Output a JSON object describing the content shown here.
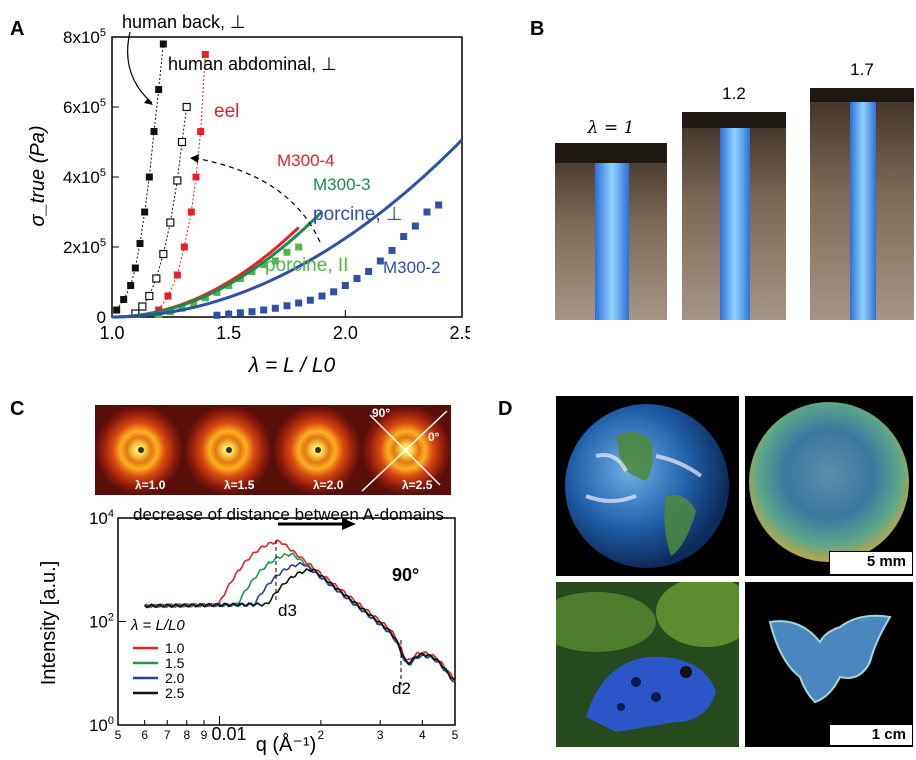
{
  "panels": {
    "a": "A",
    "b": "B",
    "c": "C",
    "d": "D"
  },
  "chart_data": [
    {
      "type": "scatter",
      "panel": "A",
      "ylabel": "σ_true (Pa)",
      "xlabel": "λ = L / L0",
      "xlim": [
        1.0,
        2.5
      ],
      "ylim": [
        0,
        800000
      ],
      "xticks": [
        "1.0",
        "1.5",
        "2.0",
        "2.5"
      ],
      "yticks": [
        "0",
        "2x10^5",
        "4x10^5",
        "6x10^5",
        "8x10^5"
      ],
      "series": [
        {
          "name": "human back, ⊥",
          "color": "#111111",
          "marker": "filled-square",
          "line": "dotted",
          "x": [
            1.02,
            1.05,
            1.08,
            1.1,
            1.12,
            1.14,
            1.16,
            1.18,
            1.2,
            1.22
          ],
          "y": [
            20000,
            50000,
            90000,
            140000,
            210000,
            300000,
            400000,
            530000,
            650000,
            780000
          ]
        },
        {
          "name": "human abdominal, ⊥",
          "color": "#111111",
          "marker": "open-square",
          "line": "dotted",
          "x": [
            1.1,
            1.13,
            1.16,
            1.19,
            1.22,
            1.25,
            1.28,
            1.3,
            1.32
          ],
          "y": [
            10000,
            30000,
            60000,
            110000,
            180000,
            270000,
            390000,
            500000,
            600000
          ]
        },
        {
          "name": "eel",
          "color": "#e8202a",
          "marker": "filled-square",
          "line": "dotted",
          "x": [
            1.2,
            1.24,
            1.28,
            1.31,
            1.34,
            1.36,
            1.38,
            1.4
          ],
          "y": [
            20000,
            60000,
            120000,
            200000,
            300000,
            400000,
            530000,
            750000
          ]
        },
        {
          "name": "porcine, II",
          "color": "#4fb848",
          "marker": "filled-square",
          "line": "none",
          "x": [
            1.2,
            1.25,
            1.3,
            1.35,
            1.4,
            1.45,
            1.5,
            1.55,
            1.6,
            1.65,
            1.7,
            1.75,
            1.8
          ],
          "y": [
            8000,
            15000,
            25000,
            40000,
            55000,
            70000,
            90000,
            110000,
            130000,
            150000,
            160000,
            185000,
            200000
          ]
        },
        {
          "name": "porcine, ⊥",
          "color": "#2f4fa8",
          "marker": "filled-square",
          "line": "none",
          "x": [
            1.45,
            1.5,
            1.55,
            1.6,
            1.65,
            1.7,
            1.75,
            1.8,
            1.85,
            1.9,
            1.95,
            2.0,
            2.05,
            2.1,
            2.15,
            2.2,
            2.25,
            2.3,
            2.35,
            2.4
          ],
          "y": [
            5000,
            8000,
            12000,
            15000,
            20000,
            25000,
            32000,
            40000,
            48000,
            60000,
            72000,
            90000,
            110000,
            130000,
            160000,
            190000,
            230000,
            260000,
            300000,
            320000
          ]
        },
        {
          "name": "M300-4",
          "color": "#e8202a",
          "marker": "none",
          "line": "solid",
          "curve": {
            "x0": 1.0,
            "x1": 1.8,
            "a": 400000,
            "p": 2
          }
        },
        {
          "name": "M300-3",
          "color": "#1a8c4a",
          "marker": "none",
          "line": "solid",
          "curve": {
            "x0": 1.0,
            "x1": 1.9,
            "a": 372000,
            "p": 2
          }
        },
        {
          "name": "M300-2",
          "color": "#2f4fa8",
          "marker": "none",
          "line": "solid",
          "curve": {
            "x0": 1.0,
            "x1": 2.5,
            "a": 225000,
            "p": 2
          }
        }
      ],
      "annotations": [
        "human back, ⊥",
        "human abdominal, ⊥",
        "eel",
        "M300-4",
        "M300-3",
        "porcine, ⊥",
        "porcine, II",
        "M300-2"
      ]
    },
    {
      "type": "line",
      "panel": "C",
      "ylabel": "Intensity [a.u.]",
      "xlabel": "q (Å⁻¹)",
      "xscale": "log",
      "yscale": "log",
      "xlim": [
        0.005,
        0.05
      ],
      "ylim": [
        1,
        10000
      ],
      "xtick_minor": [
        "5",
        "6",
        "7",
        "8",
        "9",
        "2",
        "3",
        "4",
        "5"
      ],
      "xtick_major": "0.01",
      "yticks": [
        "10^0",
        "10^2",
        "10^4"
      ],
      "legend_title": "λ = L/L0",
      "legend_entries": [
        "1.0",
        "1.5",
        "2.0",
        "2.5"
      ],
      "series": [
        {
          "name": "1.0",
          "color": "#e3242b",
          "peak_q": 0.0152,
          "peak_i": 3500
        },
        {
          "name": "1.5",
          "color": "#1f9a4a",
          "peak_q": 0.0165,
          "peak_i": 2000
        },
        {
          "name": "2.0",
          "color": "#2c3f9e",
          "peak_q": 0.0178,
          "peak_i": 1300
        },
        {
          "name": "2.5",
          "color": "#111111",
          "peak_q": 0.019,
          "peak_i": 1000
        }
      ],
      "annotations": {
        "title": "decrease of distance between A-domains",
        "angle": "90°",
        "d3": "d3",
        "d2": "d2"
      }
    }
  ],
  "panel_b": {
    "labels": [
      "λ = 1",
      "1.2",
      "1.7"
    ]
  },
  "panel_c_images": {
    "labels": [
      "λ=1.0",
      "λ=1.5",
      "λ=2.0",
      "λ=2.5"
    ],
    "angle_90": "90°",
    "angle_0": "0°"
  },
  "panel_d": {
    "scale1": "5 mm",
    "scale2": "1 cm"
  }
}
